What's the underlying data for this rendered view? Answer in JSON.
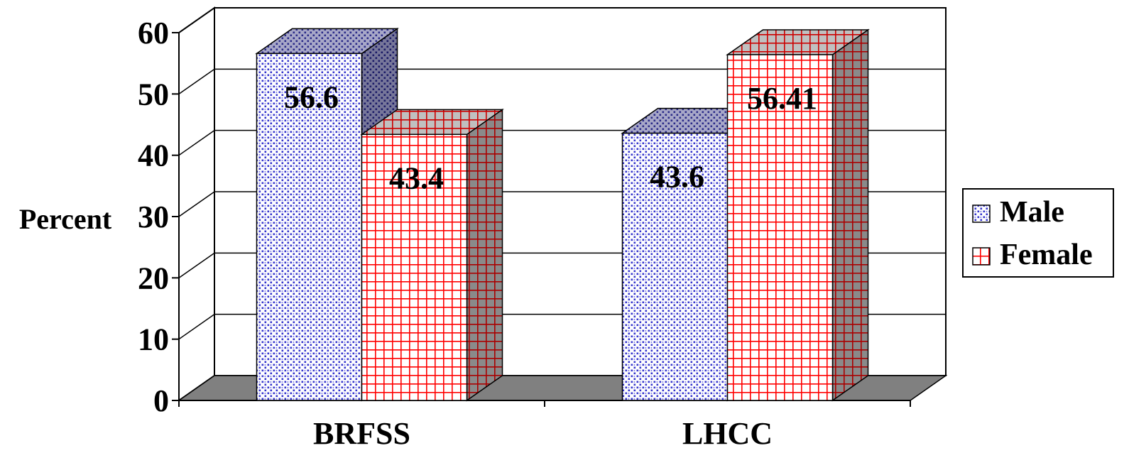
{
  "chart_data": {
    "type": "bar",
    "title": "",
    "xlabel": "",
    "ylabel": "Percent",
    "ylim": [
      0,
      60
    ],
    "yticks": [
      0,
      10,
      20,
      30,
      40,
      50,
      60
    ],
    "categories": [
      "BRFSS",
      "LHCC"
    ],
    "series": [
      {
        "name": "Male",
        "values": [
          56.6,
          43.6
        ],
        "labels": [
          "56.6",
          "43.6"
        ],
        "color": "#3333cc",
        "pattern": "dots"
      },
      {
        "name": "Female",
        "values": [
          43.4,
          56.41
        ],
        "labels": [
          "43.4",
          "56.41"
        ],
        "color": "#ff0000",
        "pattern": "grid"
      }
    ],
    "grid": true,
    "legend": "right",
    "style": "3d"
  }
}
